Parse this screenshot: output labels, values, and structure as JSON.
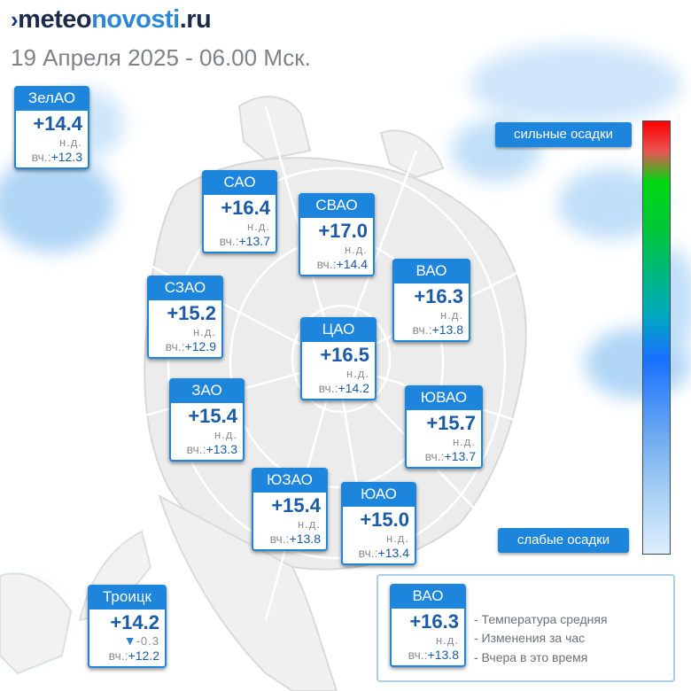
{
  "header": {
    "logo_mark": "›",
    "logo_part1": "meteo",
    "logo_part2": "novosti",
    "logo_part3": ".ru",
    "date": "19 Апреля 2025 - 06.00 Мск."
  },
  "colors": {
    "accent": "#1d85dc",
    "temp_text": "#1a5aa8",
    "muted_text": "#8a8f96",
    "legend_border": "#a9cfe6"
  },
  "districts": [
    {
      "id": "zelao",
      "name": "ЗелАО",
      "temp": "+14.4",
      "change": "н.д.",
      "yday_label": "вч.:",
      "yday": "+12.3"
    },
    {
      "id": "sao",
      "name": "САО",
      "temp": "+16.4",
      "change": "н.д.",
      "yday_label": "вч.:",
      "yday": "+13.7"
    },
    {
      "id": "svao",
      "name": "СВАО",
      "temp": "+17.0",
      "change": "н.д.",
      "yday_label": "вч.:",
      "yday": "+14.4"
    },
    {
      "id": "vao",
      "name": "ВАО",
      "temp": "+16.3",
      "change": "н.д.",
      "yday_label": "вч.:",
      "yday": "+13.8"
    },
    {
      "id": "szao",
      "name": "СЗАО",
      "temp": "+15.2",
      "change": "н.д.",
      "yday_label": "вч.:",
      "yday": "+12.9"
    },
    {
      "id": "tsao",
      "name": "ЦАО",
      "temp": "+16.5",
      "change": "н.д.",
      "yday_label": "вч.:",
      "yday": "+14.2"
    },
    {
      "id": "zao",
      "name": "ЗАО",
      "temp": "+15.4",
      "change": "н.д.",
      "yday_label": "вч.:",
      "yday": "+13.3"
    },
    {
      "id": "yuvao",
      "name": "ЮВАО",
      "temp": "+15.7",
      "change": "н.д.",
      "yday_label": "вч.:",
      "yday": "+13.7"
    },
    {
      "id": "yuzao",
      "name": "ЮЗАО",
      "temp": "+15.4",
      "change": "н.д.",
      "yday_label": "вч.:",
      "yday": "+13.8"
    },
    {
      "id": "yuao",
      "name": "ЮАО",
      "temp": "+15.0",
      "change": "н.д.",
      "yday_label": "вч.:",
      "yday": "+13.4"
    },
    {
      "id": "troitsk",
      "name": "Троицк",
      "temp": "+14.2",
      "change_icon": "▼",
      "change": "-0.3",
      "yday_label": "вч.:",
      "yday": "+12.2"
    }
  ],
  "precip_scale": {
    "high_label": "сильные осадки",
    "low_label": "слабые осадки"
  },
  "legend": {
    "sample": {
      "name": "ВАО",
      "temp": "+16.3",
      "change": "н.д.",
      "yday_label": "вч.:",
      "yday": "+13.8"
    },
    "items": [
      "- Температура средняя",
      "- Изменения за час",
      "- Вчера в это время"
    ]
  }
}
